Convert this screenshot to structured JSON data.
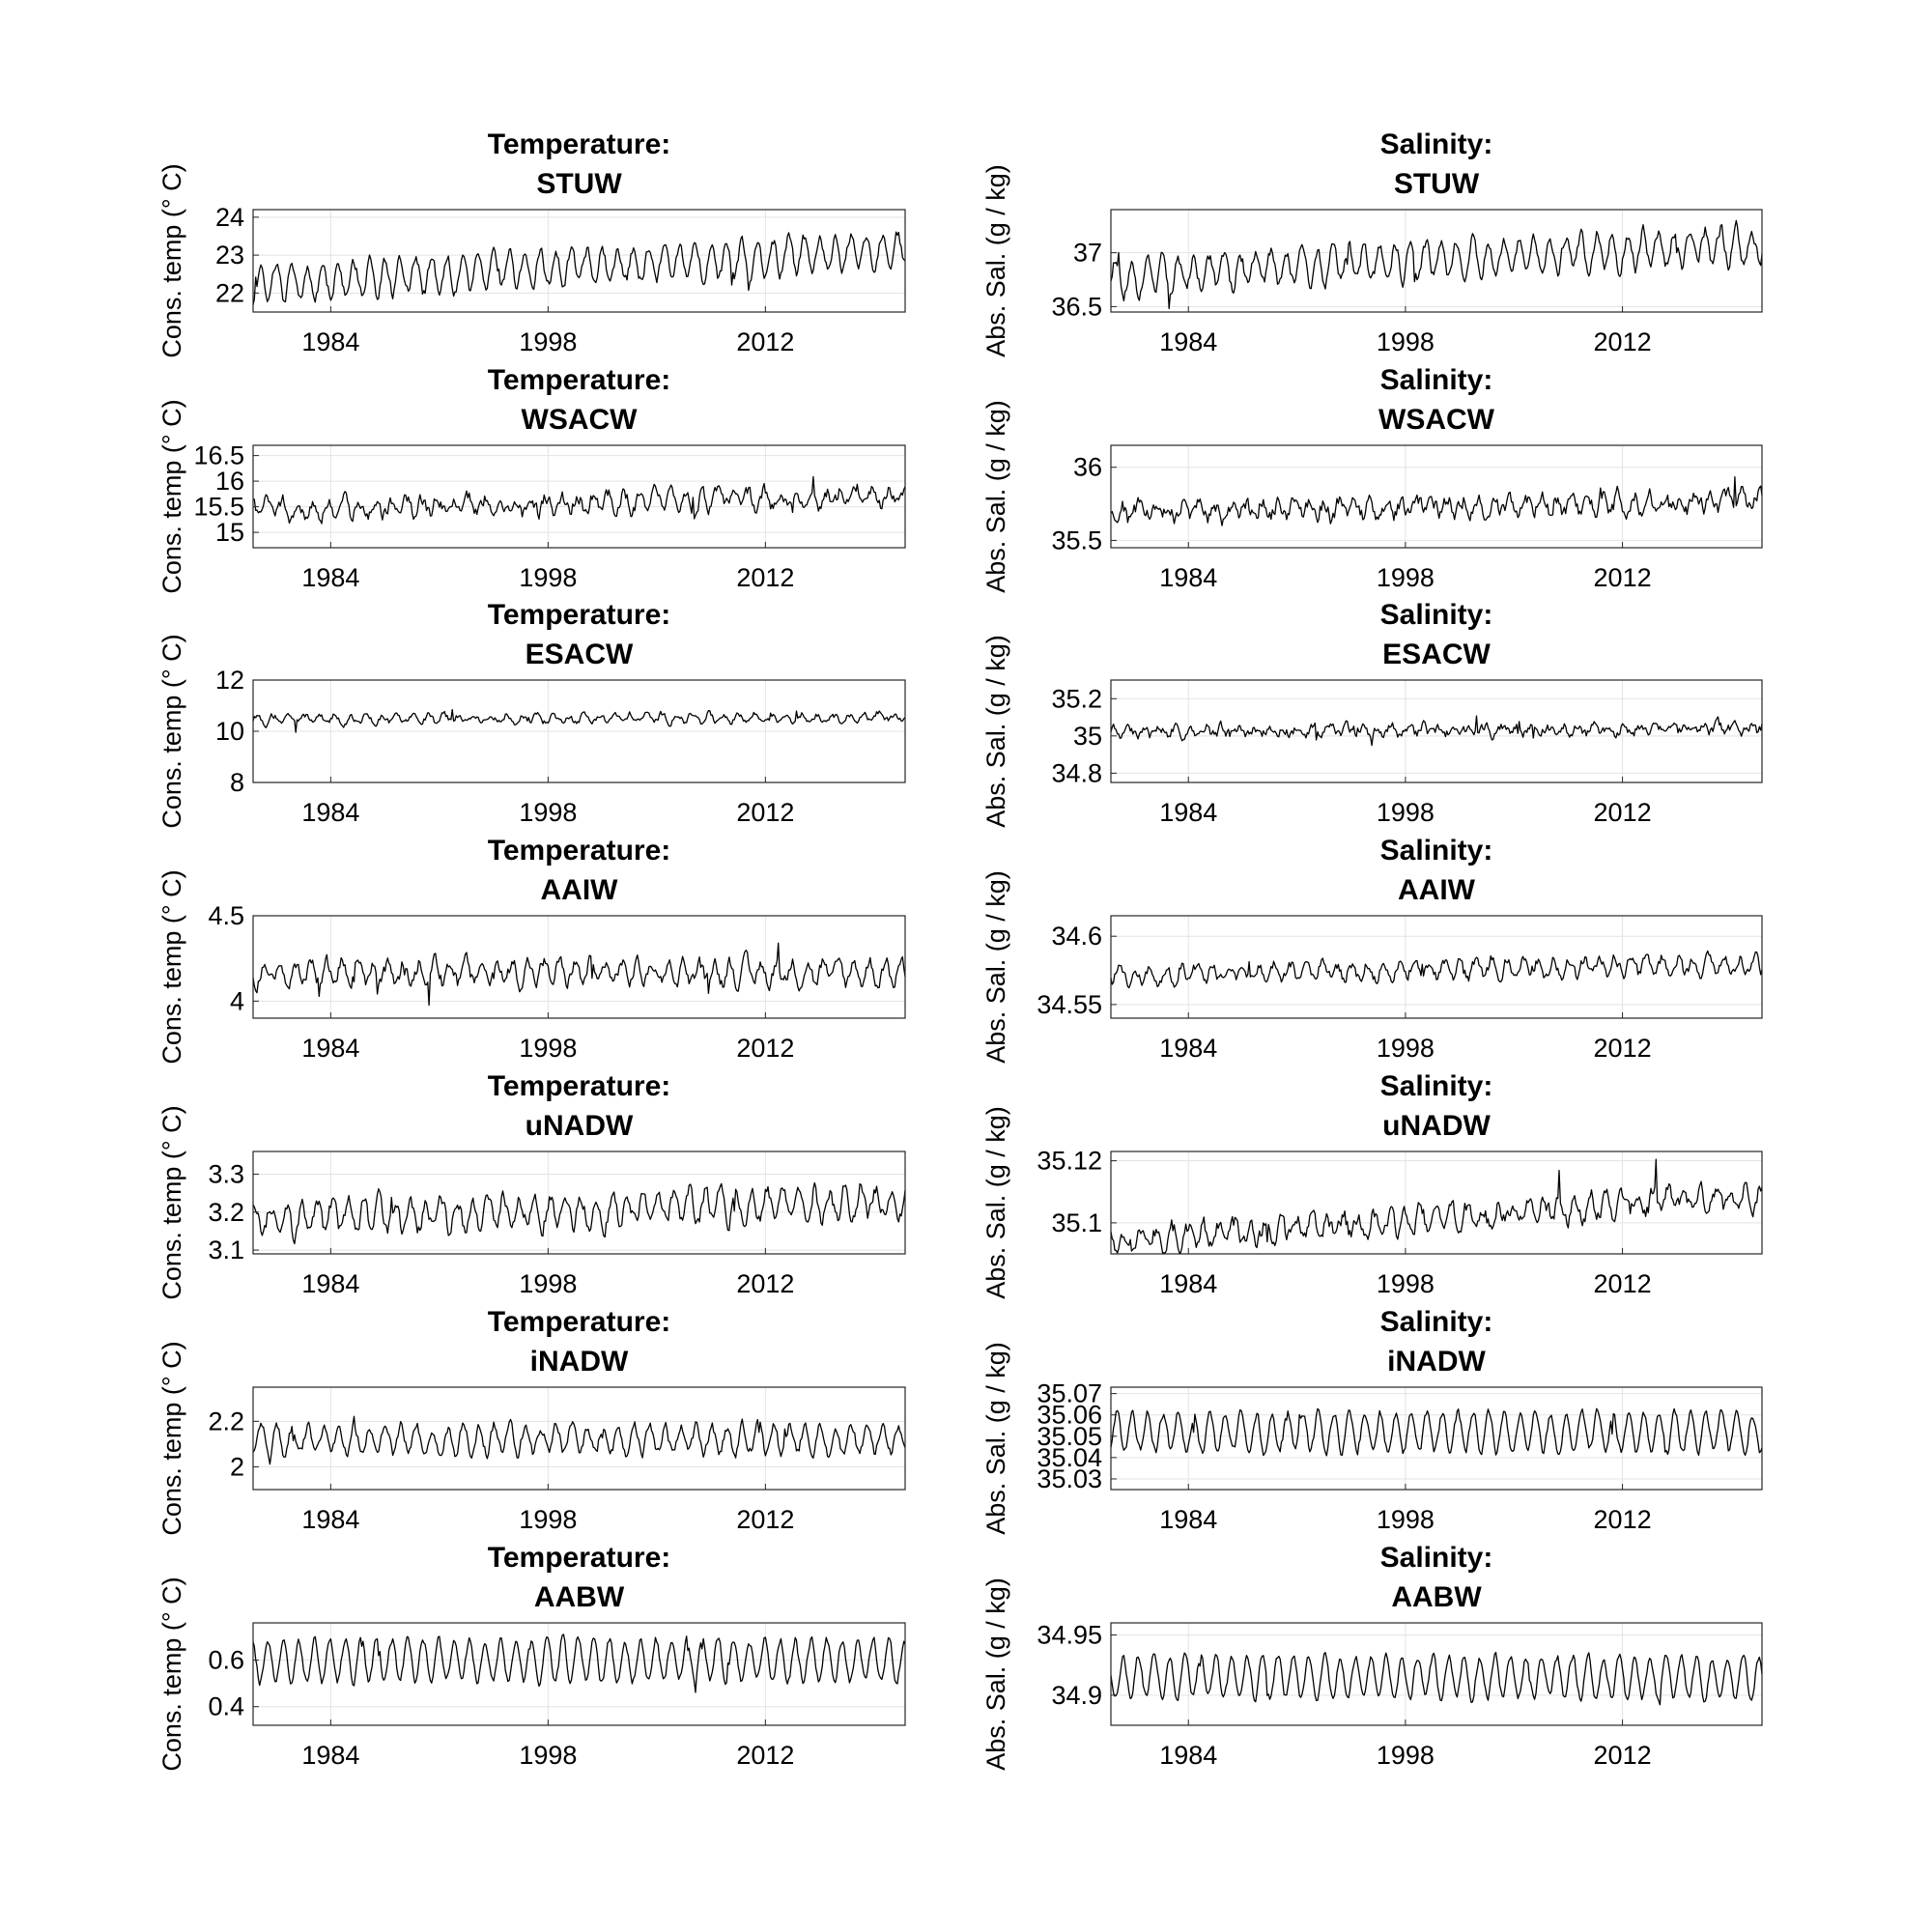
{
  "figure": {
    "line_color": "#000000",
    "grid_color": "#e3e3e3",
    "background_color": "#ffffff"
  },
  "chart_data": [
    {
      "type": "line",
      "title": [
        "Temperature:",
        "STUW"
      ],
      "ylabel": "Cons. temp (° C)",
      "xticks": [
        1984,
        1998,
        2012
      ],
      "yticks": [
        22,
        23,
        24
      ],
      "ytick_labels": [
        "22",
        "23",
        "24"
      ],
      "xlim": [
        1979,
        2021
      ],
      "ylim": [
        21.5,
        24.2
      ],
      "grid": true,
      "series": [
        {
          "mean": 22.6,
          "trend": 0.9,
          "amplitude": 0.45,
          "noise": 0.22,
          "seed": 11
        }
      ]
    },
    {
      "type": "line",
      "title": [
        "Salinity:",
        "STUW"
      ],
      "ylabel": "Abs. Sal. (g / kg)",
      "xticks": [
        1984,
        1998,
        2012
      ],
      "yticks": [
        36.5,
        37
      ],
      "ytick_labels": [
        "36.5",
        "37"
      ],
      "xlim": [
        1979,
        2021
      ],
      "ylim": [
        36.45,
        37.4
      ],
      "grid": true,
      "series": [
        {
          "mean": 36.9,
          "trend": 0.3,
          "amplitude": 0.16,
          "noise": 0.09,
          "seed": 12
        }
      ]
    },
    {
      "type": "line",
      "title": [
        "Temperature:",
        "WSACW"
      ],
      "ylabel": "Cons. temp (° C)",
      "xticks": [
        1984,
        1998,
        2012
      ],
      "yticks": [
        15,
        15.5,
        16,
        16.5
      ],
      "ytick_labels": [
        "15",
        "15.5",
        "16",
        "16.5"
      ],
      "xlim": [
        1979,
        2021
      ],
      "ylim": [
        14.7,
        16.7
      ],
      "grid": true,
      "series": [
        {
          "mean": 15.55,
          "trend": 0.25,
          "amplitude": 0.15,
          "noise": 0.2,
          "seed": 21
        }
      ]
    },
    {
      "type": "line",
      "title": [
        "Salinity:",
        "WSACW"
      ],
      "ylabel": "Abs. Sal. (g / kg)",
      "xticks": [
        1984,
        1998,
        2012
      ],
      "yticks": [
        35.5,
        36
      ],
      "ytick_labels": [
        "35.5",
        "36"
      ],
      "xlim": [
        1979,
        2021
      ],
      "ylim": [
        35.45,
        36.15
      ],
      "grid": true,
      "series": [
        {
          "mean": 35.72,
          "trend": 0.1,
          "amplitude": 0.05,
          "noise": 0.08,
          "seed": 22
        }
      ]
    },
    {
      "type": "line",
      "title": [
        "Temperature:",
        "ESACW"
      ],
      "ylabel": "Cons. temp (° C)",
      "xticks": [
        1984,
        1998,
        2012
      ],
      "yticks": [
        8,
        10,
        12
      ],
      "ytick_labels": [
        "8",
        "10",
        "12"
      ],
      "xlim": [
        1979,
        2021
      ],
      "ylim": [
        8,
        12
      ],
      "grid": true,
      "series": [
        {
          "mean": 10.5,
          "trend": 0.1,
          "amplitude": 0.15,
          "noise": 0.18,
          "seed": 31
        }
      ]
    },
    {
      "type": "line",
      "title": [
        "Salinity:",
        "ESACW"
      ],
      "ylabel": "Abs. Sal. (g / kg)",
      "xticks": [
        1984,
        1998,
        2012
      ],
      "yticks": [
        34.8,
        35,
        35.2
      ],
      "ytick_labels": [
        "34.8",
        "35",
        "35.2"
      ],
      "xlim": [
        1979,
        2021
      ],
      "ylim": [
        34.75,
        35.3
      ],
      "grid": true,
      "series": [
        {
          "mean": 35.03,
          "trend": 0.02,
          "amplitude": 0.02,
          "noise": 0.04,
          "seed": 32
        }
      ]
    },
    {
      "type": "line",
      "title": [
        "Temperature:",
        "AAIW"
      ],
      "ylabel": "Cons. temp (° C)",
      "xticks": [
        1984,
        1998,
        2012
      ],
      "yticks": [
        4,
        4.5
      ],
      "ytick_labels": [
        "4",
        "4.5"
      ],
      "xlim": [
        1979,
        2021
      ],
      "ylim": [
        3.9,
        4.5
      ],
      "grid": true,
      "series": [
        {
          "mean": 4.17,
          "trend": 0.0,
          "amplitude": 0.06,
          "noise": 0.06,
          "seed": 41
        }
      ]
    },
    {
      "type": "line",
      "title": [
        "Salinity:",
        "AAIW"
      ],
      "ylabel": "Abs. Sal. (g / kg)",
      "xticks": [
        1984,
        1998,
        2012
      ],
      "yticks": [
        34.55,
        34.6
      ],
      "ytick_labels": [
        "34.55",
        "34.6"
      ],
      "xlim": [
        1979,
        2021
      ],
      "ylim": [
        34.54,
        34.615
      ],
      "grid": true,
      "series": [
        {
          "mean": 34.575,
          "trend": 0.008,
          "amplitude": 0.006,
          "noise": 0.006,
          "seed": 42
        }
      ]
    },
    {
      "type": "line",
      "title": [
        "Temperature:",
        "uNADW"
      ],
      "ylabel": "Cons. temp (° C)",
      "xticks": [
        1984,
        1998,
        2012
      ],
      "yticks": [
        3.1,
        3.2,
        3.3
      ],
      "ytick_labels": [
        "3.1",
        "3.2",
        "3.3"
      ],
      "xlim": [
        1979,
        2021
      ],
      "ylim": [
        3.09,
        3.36
      ],
      "grid": true,
      "series": [
        {
          "mean": 3.2,
          "trend": 0.05,
          "amplitude": 0.04,
          "noise": 0.03,
          "seed": 51
        }
      ]
    },
    {
      "type": "line",
      "title": [
        "Salinity:",
        "uNADW"
      ],
      "ylabel": "Abs. Sal. (g / kg)",
      "xticks": [
        1984,
        1998,
        2012
      ],
      "yticks": [
        35.1,
        35.12
      ],
      "ytick_labels": [
        "35.1",
        "35.12"
      ],
      "xlim": [
        1979,
        2021
      ],
      "ylim": [
        35.09,
        35.123
      ],
      "grid": true,
      "series": [
        {
          "mean": 35.1,
          "trend": 0.016,
          "amplitude": 0.003,
          "noise": 0.004,
          "seed": 52
        }
      ]
    },
    {
      "type": "line",
      "title": [
        "Temperature:",
        "iNADW"
      ],
      "ylabel": "Cons. temp (° C)",
      "xticks": [
        1984,
        1998,
        2012
      ],
      "yticks": [
        2,
        2.2
      ],
      "ytick_labels": [
        "2",
        "2.2"
      ],
      "xlim": [
        1979,
        2021
      ],
      "ylim": [
        1.9,
        2.35
      ],
      "grid": true,
      "series": [
        {
          "mean": 2.12,
          "trend": 0.0,
          "amplitude": 0.06,
          "noise": 0.035,
          "seed": 61
        }
      ]
    },
    {
      "type": "line",
      "title": [
        "Salinity:",
        "iNADW"
      ],
      "ylabel": "Abs. Sal. (g / kg)",
      "xticks": [
        1984,
        1998,
        2012
      ],
      "yticks": [
        35.03,
        35.04,
        35.05,
        35.06,
        35.07
      ],
      "ytick_labels": [
        "35.03",
        "35.04",
        "35.05",
        "35.06",
        "35.07"
      ],
      "xlim": [
        1979,
        2021
      ],
      "ylim": [
        35.025,
        35.073
      ],
      "grid": true,
      "series": [
        {
          "mean": 35.052,
          "trend": 0.0,
          "amplitude": 0.009,
          "noise": 0.003,
          "seed": 62
        }
      ]
    },
    {
      "type": "line",
      "title": [
        "Temperature:",
        "AABW"
      ],
      "ylabel": "Cons. temp (° C)",
      "xticks": [
        1984,
        1998,
        2012
      ],
      "yticks": [
        0.4,
        0.6
      ],
      "ytick_labels": [
        "0.4",
        "0.6"
      ],
      "xlim": [
        1979,
        2021
      ],
      "ylim": [
        0.32,
        0.76
      ],
      "grid": true,
      "series": [
        {
          "mean": 0.6,
          "trend": 0.0,
          "amplitude": 0.09,
          "noise": 0.025,
          "seed": 71
        }
      ]
    },
    {
      "type": "line",
      "title": [
        "Salinity:",
        "AABW"
      ],
      "ylabel": "Abs. Sal. (g / kg)",
      "xticks": [
        1984,
        1998,
        2012
      ],
      "yticks": [
        34.9,
        34.95
      ],
      "ytick_labels": [
        "34.9",
        "34.95"
      ],
      "xlim": [
        1979,
        2021
      ],
      "ylim": [
        34.875,
        34.96
      ],
      "grid": true,
      "series": [
        {
          "mean": 34.915,
          "trend": 0.0,
          "amplitude": 0.017,
          "noise": 0.005,
          "seed": 72
        }
      ]
    }
  ]
}
